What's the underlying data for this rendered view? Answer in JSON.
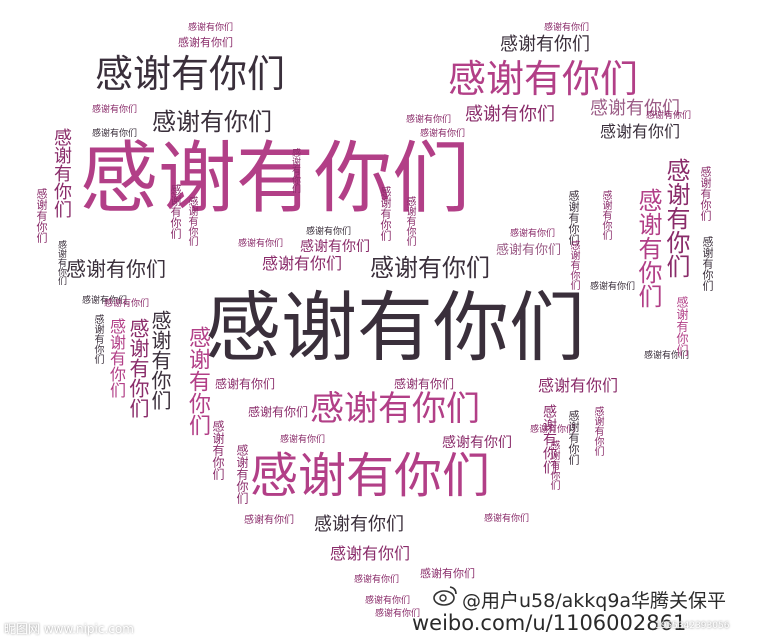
{
  "phrase": "感谢有你们",
  "colors": {
    "dark": "#3a2f3b",
    "plum": "#8a2c6a",
    "pink": "#b23f87",
    "rose": "#c2578f",
    "mauve": "#9b5c86"
  },
  "watermarks": {
    "nipic": "昵图网 www.nipic.com",
    "weibo_line1": "@用户u58/akkq9a华腾关保平",
    "weibo_line2": "weibo.com/u/1106002861",
    "id_number": "1955342393056"
  }
}
